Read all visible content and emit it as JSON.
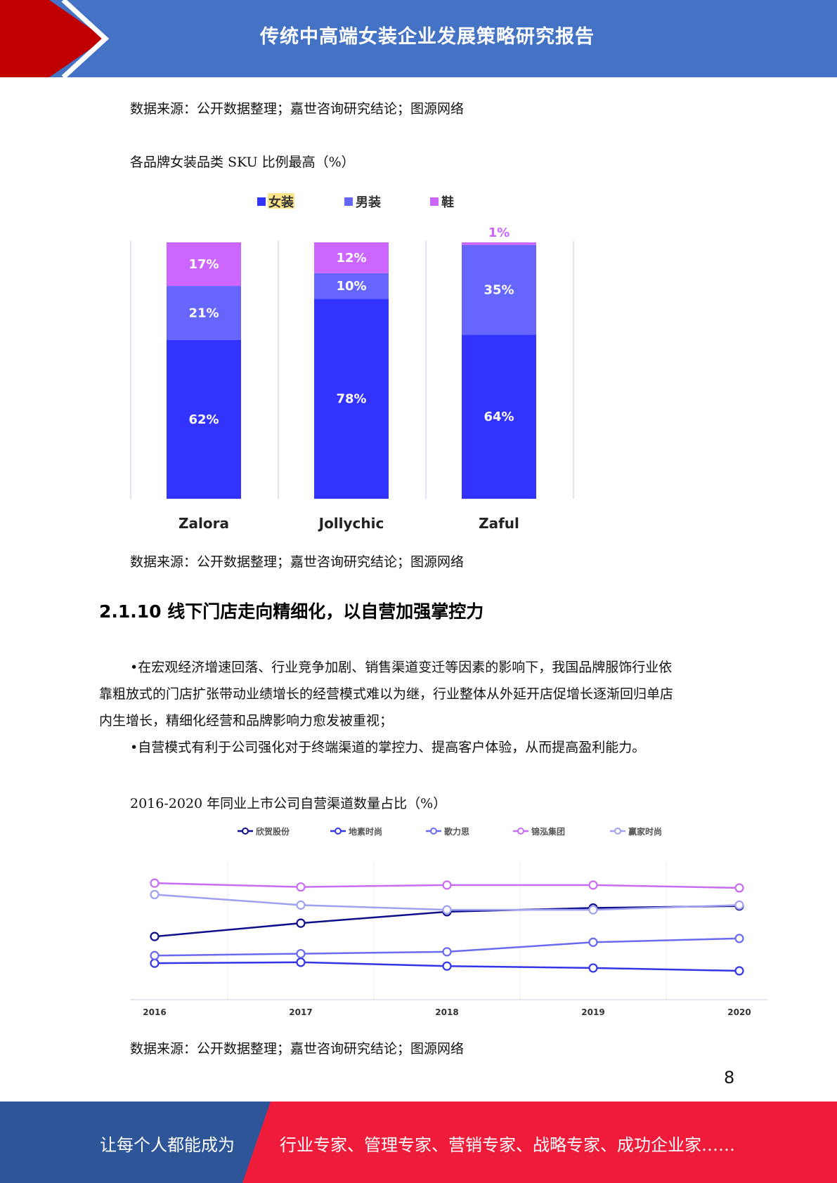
{
  "header": {
    "title": "传统中高端女装企业发展策略研究报告"
  },
  "sources": {
    "source1": "数据来源：公开数据整理；嘉世咨询研究结论；图源网络",
    "source2": "数据来源：公开数据整理；嘉世咨询研究结论；图源网络",
    "source3": "数据来源：公开数据整理；嘉世咨询研究结论；图源网络"
  },
  "captions": {
    "chart1": "各品牌女装品类 SKU 比例最高（%）",
    "chart2": "2016-2020 年同业上市公司自营渠道数量占比（%）"
  },
  "section": {
    "heading": "2.1.10 线下门店走向精细化，以自营加强掌控力",
    "para_lines": [
      "•在宏观经济增速回落、行业竞争加剧、销售渠道变迁等因素的影响下，我国品牌服饰行业依",
      "靠粗放式的门店扩张带动业绩增长的经营模式难以为继，行业整体从外延开店促增长逐渐回归单店",
      "内生增长，精细化经营和品牌影响力愈发被重视；",
      "•自营模式有利于公司强化对于终端渠道的掌控力、提高客户体验，从而提高盈利能力。"
    ]
  },
  "chart_data": [
    {
      "type": "bar",
      "stacked": true,
      "categories": [
        "Zalora",
        "Jollychic",
        "Zaful"
      ],
      "series": [
        {
          "name": "女装",
          "values": [
            62,
            78,
            64
          ],
          "color": "#3333ff"
        },
        {
          "name": "男装",
          "values": [
            21,
            10,
            35
          ],
          "color": "#6666ff"
        },
        {
          "name": "鞋",
          "values": [
            17,
            12,
            1
          ],
          "color": "#cc66ff"
        }
      ],
      "labels": [
        [
          "62%",
          "78%",
          "64%"
        ],
        [
          "21%",
          "10%",
          "35%"
        ],
        [
          "17%",
          "12%",
          "1%"
        ]
      ],
      "legend": "top",
      "ylim": [
        0,
        100
      ]
    },
    {
      "type": "line",
      "x": [
        "2016",
        "2017",
        "2018",
        "2019",
        "2020"
      ],
      "series": [
        {
          "name": "欣贺股份",
          "values": [
            82,
            89,
            95,
            97,
            98
          ],
          "color": "#0e0e8c"
        },
        {
          "name": "地素时尚",
          "values": [
            68,
            68.5,
            66.5,
            65.5,
            64
          ],
          "color": "#3535e8"
        },
        {
          "name": "歌力思",
          "values": [
            72,
            73,
            74,
            79,
            81
          ],
          "color": "#6a6af0"
        },
        {
          "name": "锦泓集团",
          "values": [
            110,
            108,
            109,
            109,
            107.5
          ],
          "color": "#c86cf2"
        },
        {
          "name": "赢家时尚",
          "values": [
            104,
            98.5,
            96,
            96,
            98.5
          ],
          "color": "#a0a0f0"
        }
      ],
      "legend": "top",
      "ylim": [
        50,
        120
      ],
      "grid": true
    }
  ],
  "footer": {
    "left_text": "让每个人都能成为",
    "right_text": "行业专家、管理专家、营销专家、战略专家、成功企业家……"
  },
  "page_number": "8"
}
